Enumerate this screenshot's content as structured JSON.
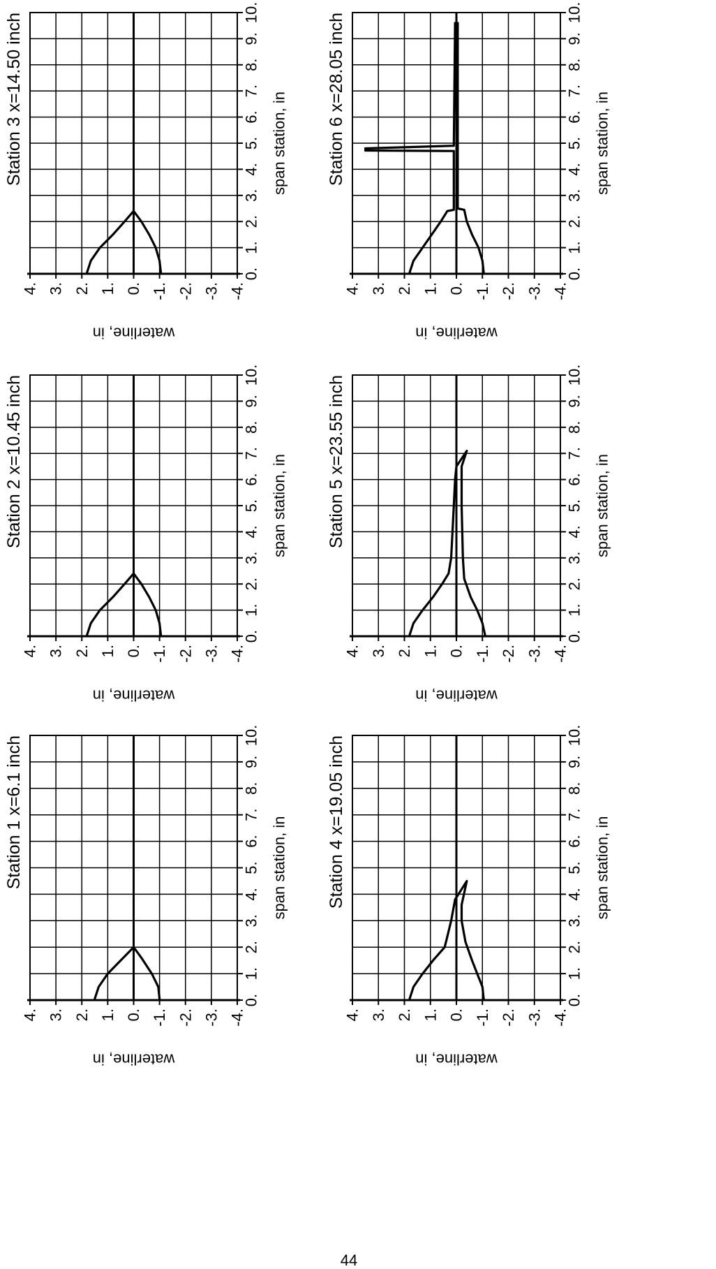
{
  "page_number": "44",
  "chart_data": [
    {
      "type": "line",
      "title": "Station 1 x=6.1 inch",
      "xlabel": "span station, in",
      "ylabel": "waterline, in",
      "xticks": [
        "0.",
        "1.",
        "2.",
        "3.",
        "4.",
        "5.",
        "6.",
        "7.",
        "8.",
        "9.",
        "10."
      ],
      "yticks": [
        "4.",
        "3.",
        "2.",
        "1.",
        "0.",
        "-1.",
        "-2.",
        "-3.",
        "-4."
      ],
      "xlim": [
        0,
        10
      ],
      "ylim": [
        -4,
        4
      ],
      "grid": true,
      "series": [
        {
          "points": [
            [
              0.05,
              1.5
            ],
            [
              0.5,
              1.35
            ],
            [
              1.0,
              1.0
            ],
            [
              1.5,
              0.5
            ],
            [
              2.0,
              0.0
            ],
            [
              1.6,
              -0.3
            ],
            [
              1.0,
              -0.7
            ],
            [
              0.5,
              -0.95
            ],
            [
              0.05,
              -1.0
            ]
          ]
        }
      ]
    },
    {
      "type": "line",
      "title": "Station 2 x=10.45 inch",
      "xlabel": "span station, in",
      "ylabel": "waterline, in",
      "xticks": [
        "0.",
        "1.",
        "2.",
        "3.",
        "4.",
        "5.",
        "6.",
        "7.",
        "8.",
        "9.",
        "10."
      ],
      "yticks": [
        "4.",
        "3.",
        "2.",
        "1.",
        "0.",
        "-1.",
        "-2.",
        "-3.",
        "-4."
      ],
      "xlim": [
        0,
        10
      ],
      "ylim": [
        -4,
        4
      ],
      "grid": true,
      "series": [
        {
          "points": [
            [
              0.05,
              1.8
            ],
            [
              0.5,
              1.65
            ],
            [
              1.0,
              1.3
            ],
            [
              1.5,
              0.8
            ],
            [
              2.0,
              0.35
            ],
            [
              2.4,
              0.0
            ],
            [
              2.0,
              -0.3
            ],
            [
              1.5,
              -0.6
            ],
            [
              1.0,
              -0.85
            ],
            [
              0.5,
              -1.0
            ],
            [
              0.05,
              -1.05
            ]
          ]
        }
      ]
    },
    {
      "type": "line",
      "title": "Station 3 x=14.50 inch",
      "xlabel": "span station, in",
      "ylabel": "waterline, in",
      "xticks": [
        "0.",
        "1.",
        "2.",
        "3.",
        "4.",
        "5.",
        "6.",
        "7.",
        "8.",
        "9.",
        "10."
      ],
      "yticks": [
        "4.",
        "3.",
        "2.",
        "1.",
        "0.",
        "-1.",
        "-2.",
        "-3.",
        "-4."
      ],
      "xlim": [
        0,
        10
      ],
      "ylim": [
        -4,
        4
      ],
      "grid": true,
      "series": [
        {
          "points": [
            [
              0.05,
              1.8
            ],
            [
              0.5,
              1.65
            ],
            [
              1.0,
              1.3
            ],
            [
              1.5,
              0.8
            ],
            [
              2.0,
              0.35
            ],
            [
              2.4,
              0.0
            ],
            [
              2.0,
              -0.3
            ],
            [
              1.5,
              -0.6
            ],
            [
              1.0,
              -0.85
            ],
            [
              0.5,
              -1.0
            ],
            [
              0.05,
              -1.05
            ]
          ]
        }
      ]
    },
    {
      "type": "line",
      "title": "Station 4 x=19.05 inch",
      "xlabel": "span station, in",
      "ylabel": "waterline, in",
      "xticks": [
        "0.",
        "1.",
        "2.",
        "3.",
        "4.",
        "5.",
        "6.",
        "7.",
        "8.",
        "9.",
        "10."
      ],
      "yticks": [
        "4.",
        "3.",
        "2.",
        "1.",
        "0.",
        "-1.",
        "-2.",
        "-3.",
        "-4."
      ],
      "xlim": [
        0,
        10
      ],
      "ylim": [
        -4,
        4
      ],
      "grid": true,
      "series": [
        {
          "points": [
            [
              0.05,
              1.8
            ],
            [
              0.5,
              1.65
            ],
            [
              1.0,
              1.3
            ],
            [
              1.5,
              0.9
            ],
            [
              2.0,
              0.45
            ],
            [
              2.4,
              0.35
            ],
            [
              3.0,
              0.2
            ],
            [
              3.8,
              0.05
            ],
            [
              4.5,
              -0.4
            ],
            [
              3.6,
              -0.2
            ],
            [
              3.0,
              -0.2
            ],
            [
              2.2,
              -0.35
            ],
            [
              1.5,
              -0.6
            ],
            [
              1.0,
              -0.8
            ],
            [
              0.5,
              -1.0
            ],
            [
              0.05,
              -1.05
            ]
          ]
        }
      ]
    },
    {
      "type": "line",
      "title": "Station 5 x=23.55 inch",
      "xlabel": "span station, in",
      "ylabel": "waterline, in",
      "xticks": [
        "0.",
        "1.",
        "2.",
        "3.",
        "4.",
        "5.",
        "6.",
        "7.",
        "8.",
        "9.",
        "10."
      ],
      "yticks": [
        "4.",
        "3.",
        "2.",
        "1.",
        "0.",
        "-1.",
        "-2.",
        "-3.",
        "-4."
      ],
      "xlim": [
        0,
        10
      ],
      "ylim": [
        -4,
        4
      ],
      "grid": true,
      "series": [
        {
          "points": [
            [
              0.05,
              1.8
            ],
            [
              0.5,
              1.65
            ],
            [
              1.0,
              1.3
            ],
            [
              1.5,
              0.9
            ],
            [
              2.0,
              0.55
            ],
            [
              2.4,
              0.3
            ],
            [
              3.0,
              0.2
            ],
            [
              4.0,
              0.15
            ],
            [
              5.0,
              0.1
            ],
            [
              6.0,
              0.05
            ],
            [
              6.5,
              0.0
            ],
            [
              7.1,
              -0.4
            ],
            [
              6.5,
              -0.2
            ],
            [
              5.0,
              -0.2
            ],
            [
              3.0,
              -0.25
            ],
            [
              2.2,
              -0.3
            ],
            [
              1.5,
              -0.55
            ],
            [
              1.0,
              -0.8
            ],
            [
              0.5,
              -1.0
            ],
            [
              0.05,
              -1.1
            ]
          ]
        }
      ]
    },
    {
      "type": "line",
      "title": "Station 6 x=28.05 inch",
      "xlabel": "span station, in",
      "ylabel": "waterline, in",
      "xticks": [
        "0.",
        "1.",
        "2.",
        "3.",
        "4.",
        "5.",
        "6.",
        "7.",
        "8.",
        "9.",
        "10."
      ],
      "yticks": [
        "4.",
        "3.",
        "2.",
        "1.",
        "0.",
        "-1.",
        "-2.",
        "-3.",
        "-4."
      ],
      "xlim": [
        0,
        10
      ],
      "ylim": [
        -4,
        4
      ],
      "grid": true,
      "series": [
        {
          "points": [
            [
              0.05,
              1.8
            ],
            [
              0.5,
              1.65
            ],
            [
              1.0,
              1.3
            ],
            [
              1.5,
              0.95
            ],
            [
              2.0,
              0.6
            ],
            [
              2.4,
              0.35
            ],
            [
              2.45,
              0.1
            ],
            [
              4.7,
              0.1
            ],
            [
              4.72,
              3.5
            ],
            [
              4.8,
              3.5
            ],
            [
              4.9,
              0.1
            ],
            [
              9.6,
              0.05
            ],
            [
              9.6,
              -0.05
            ],
            [
              4.9,
              -0.05
            ],
            [
              2.5,
              -0.05
            ],
            [
              2.45,
              -0.3
            ],
            [
              2.0,
              -0.4
            ],
            [
              1.5,
              -0.6
            ],
            [
              1.0,
              -0.85
            ],
            [
              0.5,
              -1.0
            ],
            [
              0.05,
              -1.05
            ]
          ]
        }
      ]
    }
  ]
}
